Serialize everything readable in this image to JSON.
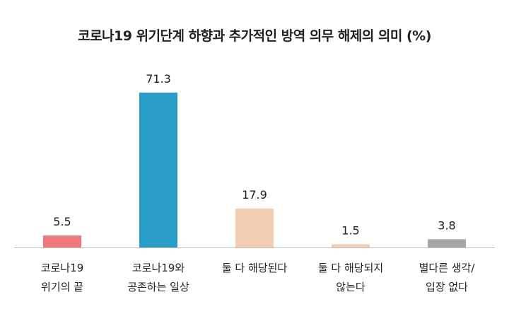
{
  "chart_data": {
    "type": "bar",
    "title": "코로나19 위기단계 하향과 추가적인 방역 의무 해제의 의미 (%)",
    "categories": [
      [
        "코로나19",
        "위기의 끝"
      ],
      [
        "코로나19와",
        "공존하는 일상"
      ],
      [
        "둘 다 해당된다"
      ],
      [
        "둘 다 해당되지",
        "않는다"
      ],
      [
        "별다른 생각/",
        "입장 없다"
      ]
    ],
    "values": [
      5.5,
      71.3,
      17.9,
      1.5,
      3.8
    ],
    "value_labels": [
      "5.5",
      "71.3",
      "17.9",
      "1.5",
      "3.8"
    ],
    "colors": [
      "#f07878",
      "#2a9ec8",
      "#f2cfb0",
      "#f2cfb0",
      "#a6a6a6"
    ],
    "axis_color": "#bfbfbf",
    "ylim": [
      0,
      75
    ],
    "grid": false,
    "xlabel": "",
    "ylabel": ""
  }
}
